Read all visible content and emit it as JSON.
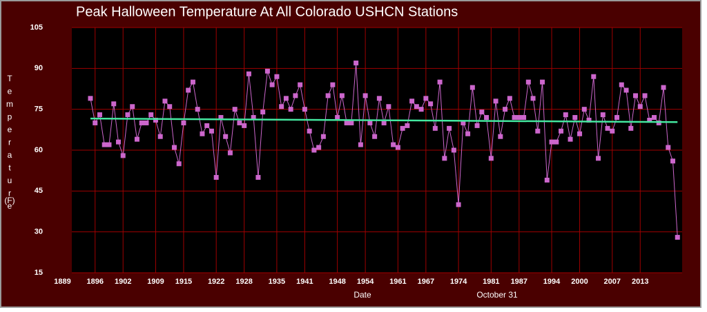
{
  "chart_data": {
    "type": "line",
    "title": "Peak Halloween Temperature At All Colorado USHCN Stations",
    "ylabel": "Temperature",
    "yunit": "(F)",
    "xlabel": "Date",
    "xlabel2": "October 31",
    "xlim": [
      1891,
      2022
    ],
    "ylim": [
      15,
      105
    ],
    "yticks": [
      15,
      30,
      45,
      60,
      75,
      90,
      105
    ],
    "xticks": [
      1889,
      1896,
      1902,
      1909,
      1915,
      1922,
      1928,
      1935,
      1941,
      1948,
      1954,
      1961,
      1967,
      1974,
      1981,
      1987,
      1994,
      2000,
      2007,
      2013
    ],
    "grid": true,
    "series": [
      {
        "color": "#cc66cc",
        "x": [
          1895,
          1896,
          1897,
          1898,
          1899,
          1900,
          1901,
          1902,
          1903,
          1904,
          1905,
          1906,
          1907,
          1908,
          1909,
          1910,
          1911,
          1912,
          1913,
          1914,
          1915,
          1916,
          1917,
          1918,
          1919,
          1920,
          1921,
          1922,
          1923,
          1924,
          1925,
          1926,
          1927,
          1928,
          1929,
          1930,
          1931,
          1932,
          1933,
          1934,
          1935,
          1936,
          1937,
          1938,
          1939,
          1940,
          1941,
          1942,
          1943,
          1944,
          1945,
          1946,
          1947,
          1948,
          1949,
          1950,
          1951,
          1952,
          1953,
          1954,
          1955,
          1956,
          1957,
          1958,
          1959,
          1960,
          1961,
          1962,
          1963,
          1964,
          1965,
          1966,
          1967,
          1968,
          1969,
          1970,
          1971,
          1972,
          1973,
          1974,
          1975,
          1976,
          1977,
          1978,
          1979,
          1980,
          1981,
          1982,
          1983,
          1984,
          1985,
          1986,
          1987,
          1988,
          1989,
          1990,
          1991,
          1992,
          1993,
          1994,
          1995,
          1996,
          1997,
          1998,
          1999,
          2000,
          2001,
          2002,
          2003,
          2004,
          2005,
          2006,
          2007,
          2008,
          2009,
          2010,
          2011,
          2012,
          2013,
          2014,
          2015,
          2016,
          2017,
          2018,
          2019,
          2020,
          2021
        ],
        "values": [
          79,
          70,
          73,
          62,
          62,
          77,
          63,
          58,
          73,
          76,
          64,
          70,
          70,
          73,
          71,
          65,
          78,
          76,
          61,
          55,
          70,
          82,
          85,
          75,
          66,
          69,
          67,
          50,
          72,
          65,
          59,
          75,
          70,
          69,
          88,
          72,
          50,
          74,
          89,
          84,
          87,
          76,
          79,
          75,
          80,
          84,
          75,
          67,
          60,
          61,
          65,
          80,
          84,
          72,
          80,
          70,
          70,
          92,
          62,
          80,
          70,
          65,
          79,
          70,
          76,
          62,
          61,
          68,
          69,
          78,
          76,
          75,
          79,
          77,
          68,
          85,
          57,
          68,
          60,
          40,
          70,
          66,
          83,
          69,
          74,
          72,
          57,
          78,
          65,
          75,
          79,
          72,
          72,
          72,
          85,
          79,
          67,
          85,
          49,
          63,
          63,
          67,
          73,
          64,
          72,
          66,
          75,
          71,
          87,
          57,
          73,
          68,
          67,
          72,
          84,
          82,
          68,
          80,
          76,
          80,
          71,
          72,
          70,
          83,
          61,
          56,
          28
        ]
      }
    ],
    "trend": {
      "color": "#44e8a0",
      "x": [
        1895,
        2021
      ],
      "values": [
        71.6,
        70.3
      ]
    }
  }
}
